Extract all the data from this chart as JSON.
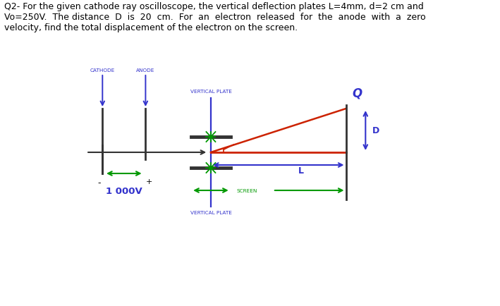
{
  "bg_color": "#ffffff",
  "blue_color": "#3333cc",
  "green_color": "#009900",
  "red_color": "#cc2200",
  "gray_color": "#555555",
  "dark_gray": "#333333",
  "cathode_label": "CATHODE",
  "anode_label": "ANODE",
  "vplate_label": "VERTICAL PLATE",
  "screen_label": "SCREEN",
  "voltage_label": "1 000V",
  "L_label": "L",
  "D_label": "D",
  "Q_label": "Q",
  "minus_label": "-",
  "plus_label": "+",
  "title_lines": [
    "Q2- For the given cathode ray oscilloscope, the vertical deflection plates L=4mm, d=2 cm and",
    "Vo=250V.  The distance  D  is  20  cm.  For  an  electron  released  for  the  anode  with  a  zero",
    "velocity, find the total displacement of the electron on the screen."
  ],
  "title_fontsize": 9.0,
  "label_fontsize": 5.2,
  "dim_fontsize": 9.0,
  "volt_fontsize": 9.5,
  "Q_fontsize": 12
}
